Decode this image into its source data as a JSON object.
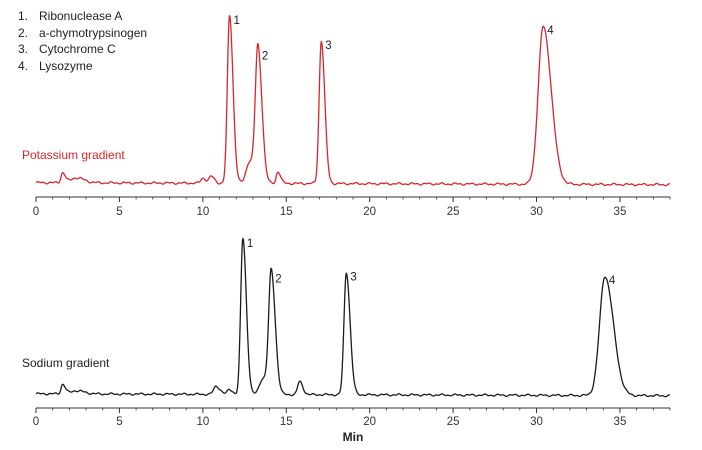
{
  "chart_data": [
    {
      "type": "line",
      "series_label": "Potassium gradient",
      "color": "#d8262c",
      "xlabel": "",
      "xlim": [
        0,
        38
      ],
      "xticks": [
        0,
        5,
        10,
        15,
        20,
        25,
        30,
        35
      ],
      "grid": false,
      "baseline": 0.02,
      "peaks": [
        {
          "label": "1",
          "x": 11.6,
          "height": 1.0,
          "width": 0.13
        },
        {
          "label": "2",
          "x": 13.3,
          "height": 0.79,
          "width": 0.15
        },
        {
          "label": "3",
          "x": 17.1,
          "height": 0.85,
          "width": 0.13
        },
        {
          "label": "4",
          "x": 30.4,
          "height": 0.94,
          "width": 0.3
        }
      ],
      "minor_peaks": [
        {
          "x": 1.6,
          "height": 0.06,
          "width": 0.1
        },
        {
          "x": 2.4,
          "height": 0.03,
          "width": 0.3
        },
        {
          "x": 10.0,
          "height": 0.03,
          "width": 0.12
        },
        {
          "x": 10.5,
          "height": 0.04,
          "width": 0.12
        },
        {
          "x": 12.8,
          "height": 0.13,
          "width": 0.2
        },
        {
          "x": 14.5,
          "height": 0.07,
          "width": 0.1
        }
      ]
    },
    {
      "type": "line",
      "series_label": "Sodium gradient",
      "color": "#1a1a1a",
      "xlabel": "Min",
      "xlim": [
        0,
        38
      ],
      "xticks": [
        0,
        5,
        10,
        15,
        20,
        25,
        30,
        35
      ],
      "grid": false,
      "baseline": 0.02,
      "peaks": [
        {
          "label": "1",
          "x": 12.4,
          "height": 0.97,
          "width": 0.13
        },
        {
          "label": "2",
          "x": 14.1,
          "height": 0.75,
          "width": 0.15
        },
        {
          "label": "3",
          "x": 18.6,
          "height": 0.76,
          "width": 0.14
        },
        {
          "label": "4",
          "x": 34.1,
          "height": 0.74,
          "width": 0.32
        }
      ],
      "minor_peaks": [
        {
          "x": 1.6,
          "height": 0.06,
          "width": 0.1
        },
        {
          "x": 2.4,
          "height": 0.02,
          "width": 0.3
        },
        {
          "x": 10.8,
          "height": 0.05,
          "width": 0.15
        },
        {
          "x": 13.6,
          "height": 0.1,
          "width": 0.2
        },
        {
          "x": 15.8,
          "height": 0.08,
          "width": 0.12
        },
        {
          "x": 11.6,
          "height": 0.03,
          "width": 0.12
        }
      ]
    }
  ],
  "legend": [
    {
      "num": "1.",
      "name": "Ribonuclease A"
    },
    {
      "num": "2.",
      "name": "a-chymotrypsinogen"
    },
    {
      "num": "3.",
      "name": "Cytochrome C"
    },
    {
      "num": "4.",
      "name": "Lysozyme"
    }
  ]
}
